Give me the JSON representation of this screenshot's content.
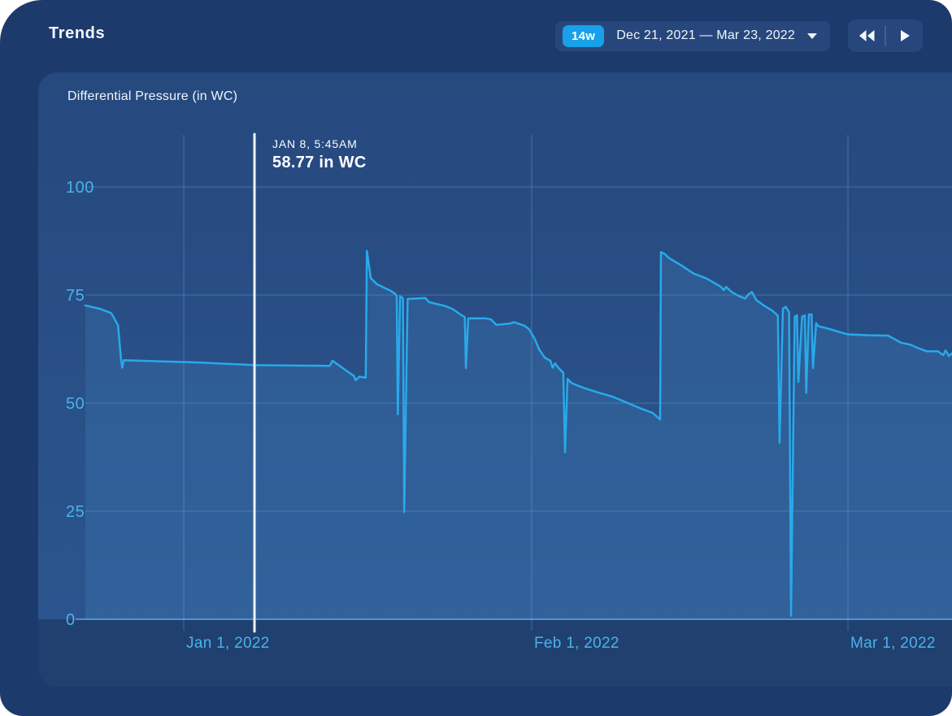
{
  "window": {
    "title": "Trends"
  },
  "controls": {
    "range_badge": "14w",
    "range_label": "Dec 21, 2021 — Mar 23, 2022",
    "dropdown_icon": "caret-down-icon",
    "rewind_icon": "double-left-triangles-icon",
    "forward_icon": "right-triangle-icon"
  },
  "panel": {
    "title": "Differential Pressure (in WC)"
  },
  "tooltip": {
    "date": "JAN 8, 5:45AM",
    "value": "58.77 in WC"
  },
  "colors": {
    "window_bg": "#1D3A6C",
    "panel_bg_top": "#26497E",
    "panel_bg_bottom": "#2C5690",
    "accent_badge": "#18A0E8",
    "line": "#29A9E9",
    "area_fill": "rgba(90,189,245,0.13)",
    "gridline": "rgba(125,200,255,0.30)",
    "month_line": "rgba(125,200,255,0.22)",
    "axis_line": "rgba(125,200,255,0.55)",
    "tick_text": "#4AB2EC",
    "cursor_line": "#EEF2F5",
    "band_overlay": "rgba(5,15,40,0.30)"
  },
  "chart_data": {
    "type": "area",
    "title": "Differential Pressure (in WC)",
    "ylabel": "in WC",
    "ylim": [
      0,
      100
    ],
    "y_ticks": [
      0,
      25,
      50,
      75,
      100
    ],
    "x_unit": "days from chart left edge (≈ Dec 23, 2021)",
    "x_domain": [
      0,
      77
    ],
    "x_ticks": [
      {
        "label": "Jan 1, 2022",
        "day": 8.74
      },
      {
        "label": "Feb 1, 2022",
        "day": 39.64
      },
      {
        "label": "Mar 1, 2022",
        "day": 67.73
      }
    ],
    "grid": true,
    "legend": false,
    "cursor": {
      "day": 15.02,
      "date": "JAN 8, 5:45AM",
      "value": 58.77,
      "value_label": "58.77 in WC"
    },
    "series": [
      {
        "name": "Differential Pressure",
        "points": [
          [
            0,
            72.6
          ],
          [
            1.3,
            71.8
          ],
          [
            2.3,
            70.8
          ],
          [
            2.9,
            68.0
          ],
          [
            3.18,
            59.8
          ],
          [
            3.28,
            58.2
          ],
          [
            3.4,
            59.9
          ],
          [
            10,
            59.4
          ],
          [
            15.02,
            58.8
          ],
          [
            21.7,
            58.6
          ],
          [
            21.95,
            59.8
          ],
          [
            23.5,
            56.9
          ],
          [
            23.85,
            56.3
          ],
          [
            24.0,
            55.3
          ],
          [
            24.35,
            56.1
          ],
          [
            24.9,
            55.9
          ],
          [
            25.0,
            85.2
          ],
          [
            25.35,
            78.9
          ],
          [
            25.9,
            77.5
          ],
          [
            27.1,
            76.0
          ],
          [
            27.5,
            75.3
          ],
          [
            27.65,
            74.8
          ],
          [
            27.75,
            47.4
          ],
          [
            27.95,
            74.7
          ],
          [
            28.2,
            74.3
          ],
          [
            28.32,
            24.8
          ],
          [
            28.62,
            74.1
          ],
          [
            30.2,
            74.3
          ],
          [
            30.5,
            73.4
          ],
          [
            30.9,
            73.1
          ],
          [
            31.9,
            72.5
          ],
          [
            32.6,
            71.8
          ],
          [
            33.3,
            70.5
          ],
          [
            33.7,
            69.9
          ],
          [
            33.8,
            58.1
          ],
          [
            34.0,
            69.6
          ],
          [
            35.5,
            69.6
          ],
          [
            36.0,
            69.4
          ],
          [
            36.5,
            68.1
          ],
          [
            37.7,
            68.4
          ],
          [
            38.1,
            68.7
          ],
          [
            39.0,
            67.9
          ],
          [
            39.4,
            67.1
          ],
          [
            39.9,
            64.9
          ],
          [
            40.3,
            62.4
          ],
          [
            40.8,
            60.5
          ],
          [
            41.3,
            59.8
          ],
          [
            41.5,
            58.2
          ],
          [
            41.72,
            59.2
          ],
          [
            42.0,
            58.2
          ],
          [
            42.45,
            57.0
          ],
          [
            42.6,
            38.6
          ],
          [
            42.82,
            55.6
          ],
          [
            43.2,
            54.6
          ],
          [
            44.4,
            53.4
          ],
          [
            45.6,
            52.4
          ],
          [
            46.8,
            51.5
          ],
          [
            48.0,
            50.2
          ],
          [
            49.2,
            48.9
          ],
          [
            50.4,
            47.7
          ],
          [
            51.05,
            46.2
          ],
          [
            51.12,
            84.9
          ],
          [
            51.45,
            84.5
          ],
          [
            51.8,
            83.6
          ],
          [
            52.9,
            81.9
          ],
          [
            54.0,
            80.0
          ],
          [
            55.2,
            78.8
          ],
          [
            56.45,
            76.9
          ],
          [
            56.7,
            76.1
          ],
          [
            56.9,
            76.9
          ],
          [
            57.4,
            75.7
          ],
          [
            58.1,
            74.7
          ],
          [
            58.6,
            74.2
          ],
          [
            58.9,
            75.2
          ],
          [
            59.2,
            75.7
          ],
          [
            59.6,
            73.8
          ],
          [
            60.3,
            72.5
          ],
          [
            61.0,
            71.4
          ],
          [
            61.35,
            70.6
          ],
          [
            61.5,
            70.2
          ],
          [
            61.65,
            40.8
          ],
          [
            61.95,
            71.8
          ],
          [
            62.2,
            72.3
          ],
          [
            62.5,
            71.0
          ],
          [
            62.67,
            0.8
          ],
          [
            63.0,
            70.0
          ],
          [
            63.2,
            70.3
          ],
          [
            63.32,
            54.9
          ],
          [
            63.65,
            70.0
          ],
          [
            63.9,
            70.3
          ],
          [
            64.02,
            52.4
          ],
          [
            64.25,
            70.5
          ],
          [
            64.5,
            70.5
          ],
          [
            64.62,
            58.1
          ],
          [
            64.9,
            68.5
          ],
          [
            65.1,
            67.8
          ],
          [
            66.0,
            67.2
          ],
          [
            67.7,
            65.9
          ],
          [
            69.5,
            65.7
          ],
          [
            71.3,
            65.6
          ],
          [
            71.8,
            64.9
          ],
          [
            72.4,
            64.0
          ],
          [
            73.3,
            63.5
          ],
          [
            73.8,
            62.9
          ],
          [
            74.7,
            62.0
          ],
          [
            75.7,
            62.0
          ],
          [
            76.2,
            61.1
          ],
          [
            76.4,
            62.2
          ],
          [
            76.7,
            60.9
          ],
          [
            76.97,
            61.5
          ]
        ]
      }
    ]
  }
}
